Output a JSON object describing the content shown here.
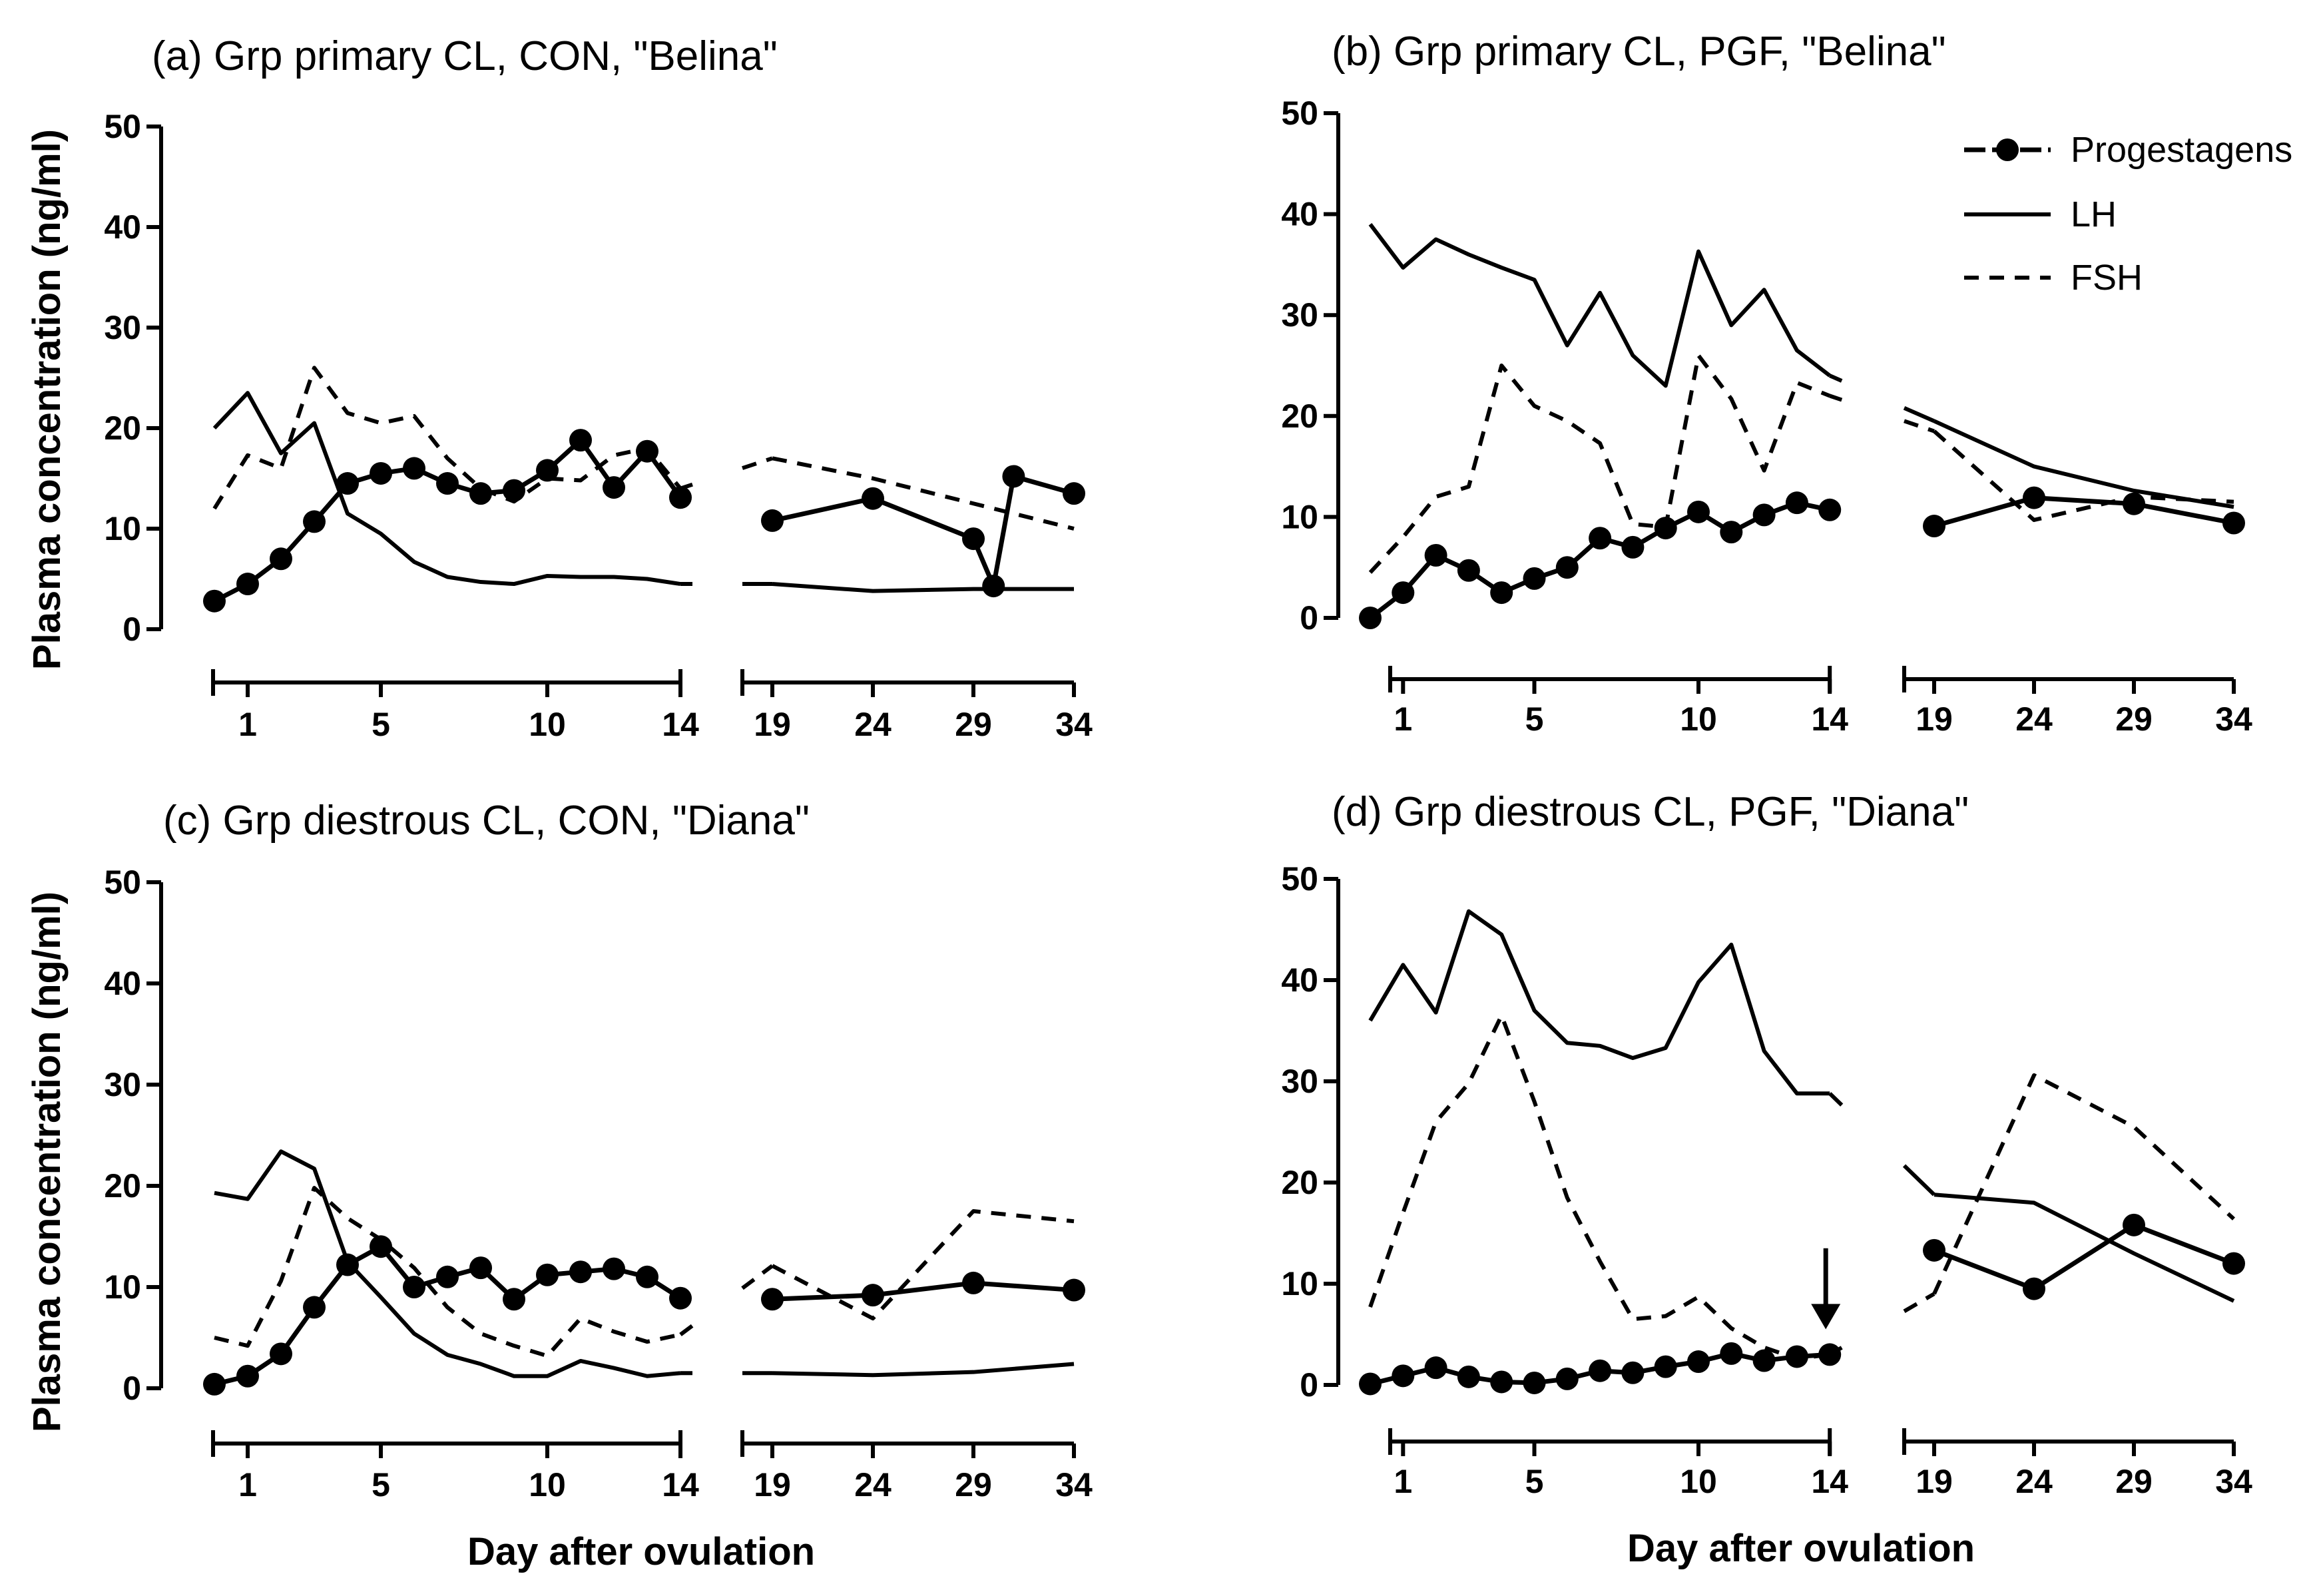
{
  "figure": {
    "ylabel": "Plasma concentration (ng/ml)",
    "xlabel": "Day after ovulation"
  },
  "legend": [
    {
      "name": "Progestagens",
      "style": "marker-line"
    },
    {
      "name": "LH",
      "style": "solid"
    },
    {
      "name": "FSH",
      "style": "dashed"
    }
  ],
  "chart_data": [
    {
      "type": "line",
      "panel": "a",
      "title": "(a)  Grp primary CL, CON, \"Belina\"",
      "xlabel": "",
      "ylabel": "Plasma concentration (ng/ml)",
      "ylim": [
        0,
        50
      ],
      "yticks": [
        0,
        10,
        20,
        30,
        40,
        50
      ],
      "x_segment1": [
        0,
        14
      ],
      "x_segment2": [
        19,
        34
      ],
      "xticks_seg1": [
        1,
        5,
        10,
        14
      ],
      "xticks_seg2": [
        19,
        24,
        29,
        34
      ],
      "series": [
        {
          "name": "Progestagens",
          "x": [
            0,
            1,
            2,
            3,
            4,
            5,
            6,
            7,
            8,
            9,
            10,
            11,
            12,
            13,
            14
          ],
          "values": [
            2.8,
            4.5,
            7.0,
            10.7,
            14.5,
            15.5,
            16.0,
            14.5,
            13.5,
            13.8,
            15.8,
            18.8,
            14.1,
            17.7,
            13.1
          ],
          "x2": [
            19,
            24,
            29,
            30,
            31,
            34
          ],
          "values2": [
            10.8,
            13.0,
            9.0,
            4.3,
            15.2,
            13.5
          ]
        },
        {
          "name": "LH",
          "x": [
            0,
            1,
            2,
            3,
            4,
            5,
            6,
            7,
            8,
            9,
            10,
            11,
            12,
            13,
            14
          ],
          "values": [
            20.0,
            23.5,
            17.5,
            20.5,
            11.5,
            9.5,
            6.7,
            5.2,
            4.7,
            4.5,
            5.3,
            5.2,
            5.2,
            5.0,
            4.5
          ],
          "x2": [
            19,
            24,
            29,
            34
          ],
          "values2": [
            4.5,
            3.8,
            4.0,
            4.0
          ]
        },
        {
          "name": "FSH",
          "x": [
            0,
            1,
            2,
            3,
            4,
            5,
            6,
            7,
            8,
            9,
            10,
            11,
            12,
            13,
            14
          ],
          "values": [
            12.0,
            17.3,
            16.0,
            26.0,
            21.5,
            20.5,
            21.2,
            17.0,
            14.0,
            12.7,
            15.0,
            14.8,
            17.3,
            18.0,
            14.0
          ],
          "x2": [
            19,
            24,
            29,
            34
          ],
          "values2": [
            17.0,
            15.0,
            12.5,
            10.0
          ]
        }
      ]
    },
    {
      "type": "line",
      "panel": "b",
      "title": "(b)  Grp primary CL, PGF, \"Belina\"",
      "xlabel": "",
      "ylabel": "",
      "ylim": [
        0,
        50
      ],
      "yticks": [
        0,
        10,
        20,
        30,
        40,
        50
      ],
      "x_segment1": [
        0,
        14
      ],
      "x_segment2": [
        19,
        34
      ],
      "xticks_seg1": [
        1,
        5,
        10,
        14
      ],
      "xticks_seg2": [
        19,
        24,
        29,
        34
      ],
      "series": [
        {
          "name": "Progestagens",
          "x": [
            0,
            1,
            2,
            3,
            4,
            5,
            6,
            7,
            8,
            9,
            10,
            11,
            12,
            13,
            14
          ],
          "values": [
            0.0,
            2.5,
            6.2,
            4.7,
            2.5,
            3.9,
            5.0,
            7.9,
            7.0,
            8.9,
            10.5,
            8.5,
            10.2,
            11.4,
            10.7
          ],
          "x2": [
            19,
            24,
            29,
            34
          ],
          "values2": [
            9.1,
            11.9,
            11.3,
            9.4
          ]
        },
        {
          "name": "LH",
          "x": [
            0,
            1,
            2,
            3,
            4,
            5,
            6,
            7,
            8,
            9,
            10,
            11,
            12,
            13,
            14
          ],
          "values": [
            39.0,
            34.7,
            37.5,
            36.0,
            34.7,
            33.5,
            27.0,
            32.2,
            26.0,
            23.0,
            36.3,
            29.0,
            32.5,
            26.5,
            24.0
          ],
          "x2": [
            19,
            24,
            29,
            34
          ],
          "values2": [
            19.5,
            15.0,
            12.6,
            11.0
          ]
        },
        {
          "name": "FSH",
          "x": [
            0,
            1,
            2,
            3,
            4,
            5,
            6,
            7,
            8,
            9,
            10,
            11,
            12,
            13,
            14
          ],
          "values": [
            4.5,
            8.0,
            12.0,
            13.0,
            25.0,
            21.0,
            19.5,
            17.3,
            9.3,
            9.0,
            26.0,
            21.7,
            14.6,
            23.3,
            22.0
          ],
          "x2": [
            19,
            24,
            29,
            34
          ],
          "values2": [
            18.5,
            9.7,
            12.0,
            11.5
          ]
        }
      ]
    },
    {
      "type": "line",
      "panel": "c",
      "title": "(c)  Grp diestrous CL, CON, \"Diana\"",
      "xlabel": "",
      "ylabel": "Plasma concentration (ng/ml)",
      "ylim": [
        0,
        50
      ],
      "yticks": [
        0,
        10,
        20,
        30,
        40,
        50
      ],
      "x_segment1": [
        0,
        14
      ],
      "x_segment2": [
        19,
        34
      ],
      "xticks_seg1": [
        1,
        5,
        10,
        14
      ],
      "xticks_seg2": [
        19,
        24,
        29,
        34
      ],
      "series": [
        {
          "name": "Progestagens",
          "x": [
            0,
            1,
            2,
            3,
            4,
            5,
            6,
            7,
            8,
            9,
            10,
            11,
            12,
            13,
            14
          ],
          "values": [
            0.4,
            1.2,
            3.4,
            8.0,
            12.2,
            14.0,
            10.0,
            11.0,
            11.9,
            8.8,
            11.2,
            11.5,
            11.8,
            11.0,
            8.9
          ],
          "x2": [
            19,
            24,
            29,
            34
          ],
          "values2": [
            8.8,
            9.2,
            10.4,
            9.7
          ]
        },
        {
          "name": "LH",
          "x": [
            0,
            1,
            2,
            3,
            4,
            5,
            6,
            7,
            8,
            9,
            10,
            11,
            12,
            13,
            14
          ],
          "values": [
            19.3,
            18.7,
            23.4,
            21.7,
            12.5,
            9.0,
            5.4,
            3.3,
            2.4,
            1.2,
            1.2,
            2.7,
            2.0,
            1.2,
            1.5
          ],
          "x2": [
            19,
            24,
            29,
            34
          ],
          "values2": [
            1.5,
            1.3,
            1.6,
            2.4
          ]
        },
        {
          "name": "FSH",
          "x": [
            0,
            1,
            2,
            3,
            4,
            5,
            6,
            7,
            8,
            9,
            10,
            11,
            12,
            13,
            14
          ],
          "values": [
            5.0,
            4.2,
            10.6,
            19.8,
            16.8,
            14.7,
            11.9,
            8.0,
            5.4,
            4.2,
            3.2,
            6.9,
            5.6,
            4.6,
            5.3
          ],
          "x2": [
            19,
            24,
            29,
            34
          ],
          "values2": [
            12.1,
            6.9,
            17.5,
            16.5
          ]
        }
      ]
    },
    {
      "type": "line",
      "panel": "d",
      "title": "(d)  Grp diestrous CL, PGF, \"Diana\"",
      "xlabel": "",
      "ylabel": "",
      "ylim": [
        0,
        50
      ],
      "yticks": [
        0,
        10,
        20,
        30,
        40,
        50
      ],
      "x_segment1": [
        0,
        14
      ],
      "x_segment2": [
        19,
        34
      ],
      "xticks_seg1": [
        1,
        5,
        10,
        14
      ],
      "xticks_seg2": [
        19,
        24,
        29,
        34
      ],
      "annotation": {
        "type": "arrow-down",
        "x": 14,
        "y_from": 13.5,
        "y_to": 5.5
      },
      "series": [
        {
          "name": "Progestagens",
          "x": [
            0,
            1,
            2,
            3,
            4,
            5,
            6,
            7,
            8,
            9,
            10,
            11,
            12,
            13,
            14
          ],
          "values": [
            0.1,
            0.9,
            1.7,
            0.8,
            0.3,
            0.2,
            0.6,
            1.4,
            1.2,
            1.8,
            2.3,
            3.1,
            2.4,
            2.8,
            3.0
          ],
          "x2": [
            19,
            24,
            29,
            34
          ],
          "values2": [
            13.3,
            9.5,
            15.8,
            12.0
          ]
        },
        {
          "name": "LH",
          "x": [
            0,
            1,
            2,
            3,
            4,
            5,
            6,
            7,
            8,
            9,
            10,
            11,
            12,
            13,
            14
          ],
          "values": [
            36.0,
            41.5,
            36.8,
            46.8,
            44.5,
            37.0,
            33.8,
            33.5,
            32.3,
            33.3,
            39.8,
            43.5,
            33.0,
            28.8,
            28.8
          ],
          "x2": [
            19,
            24,
            29,
            34
          ],
          "values2": [
            18.8,
            18.0,
            13.0,
            8.3
          ]
        },
        {
          "name": "FSH",
          "x": [
            0,
            1,
            2,
            3,
            4,
            5,
            6,
            7,
            8,
            9,
            10,
            11,
            12,
            13,
            14
          ],
          "values": [
            7.7,
            17.0,
            26.0,
            29.8,
            36.5,
            28.0,
            18.5,
            12.2,
            6.5,
            6.8,
            8.7,
            5.6,
            3.7,
            2.6,
            3.0
          ],
          "x2": [
            19,
            24,
            29,
            34
          ],
          "values2": [
            9.0,
            30.6,
            25.5,
            16.4
          ]
        }
      ]
    }
  ]
}
